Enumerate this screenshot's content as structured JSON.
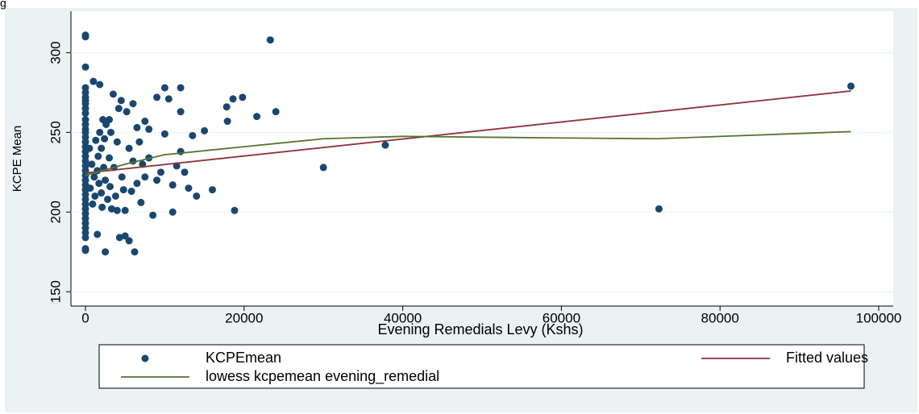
{
  "caption": "g",
  "chart_data": {
    "type": "scatter",
    "xlabel": "Evening Remedials Levy (Kshs)",
    "ylabel": "KCPE Mean",
    "xlim": [
      -1830,
      101830
    ],
    "ylim": [
      141,
      326
    ],
    "xticks": [
      0,
      20000,
      40000,
      60000,
      80000,
      100000
    ],
    "yticks": [
      150,
      200,
      250,
      300
    ],
    "grid": true,
    "series": [
      {
        "name": "KCPEmean",
        "kind": "scatter",
        "color": "#1a476f",
        "x": [
          0,
          0,
          0,
          0,
          0,
          0,
          0,
          0,
          0,
          0,
          0,
          0,
          0,
          0,
          0,
          0,
          0,
          0,
          0,
          0,
          0,
          0,
          0,
          0,
          0,
          0,
          0,
          0,
          0,
          0,
          0,
          0,
          0,
          0,
          0,
          0,
          0,
          0,
          500,
          600,
          800,
          900,
          1000,
          1100,
          1200,
          1300,
          1500,
          1500,
          1600,
          1700,
          1800,
          1800,
          2000,
          2000,
          2100,
          2200,
          2300,
          2400,
          2500,
          2500,
          2600,
          2800,
          3000,
          3000,
          3100,
          3200,
          3300,
          3500,
          3600,
          3800,
          4000,
          4000,
          4200,
          4300,
          4500,
          4600,
          4800,
          5000,
          5000,
          5200,
          5500,
          5500,
          5800,
          6000,
          6000,
          6200,
          6500,
          6500,
          6800,
          7000,
          7200,
          7500,
          7500,
          8000,
          8000,
          8500,
          9000,
          9000,
          9500,
          10000,
          10000,
          10500,
          11000,
          11000,
          11500,
          12000,
          12000,
          12000,
          12500,
          13000,
          13500,
          14000,
          15000,
          16000,
          17800,
          17900,
          18600,
          18800,
          19800,
          21600,
          23300,
          24000,
          30000,
          37800,
          72300,
          96500
        ],
        "values": [
          311,
          310,
          291,
          278,
          275,
          272,
          270,
          268,
          265,
          262,
          258,
          255,
          252,
          250,
          247,
          244,
          241,
          238,
          235,
          232,
          229,
          226,
          223,
          220,
          217,
          214,
          211,
          208,
          205,
          202,
          199,
          196,
          193,
          190,
          187,
          184,
          177,
          176,
          240,
          215,
          230,
          205,
          282,
          222,
          210,
          245,
          186,
          226,
          235,
          218,
          280,
          250,
          212,
          240,
          203,
          258,
          228,
          246,
          175,
          220,
          255,
          208,
          234,
          258,
          216,
          250,
          202,
          274,
          228,
          210,
          201,
          244,
          265,
          184,
          270,
          222,
          214,
          185,
          201,
          263,
          182,
          240,
          213,
          268,
          232,
          175,
          253,
          218,
          244,
          206,
          230,
          257,
          222,
          252,
          234,
          198,
          220,
          272,
          225,
          278,
          249,
          271,
          200,
          217,
          229,
          238,
          278,
          263,
          225,
          215,
          248,
          210,
          251,
          214,
          266,
          257,
          271,
          201,
          272,
          260,
          308,
          263,
          228,
          242,
          202,
          279
        ]
      },
      {
        "name": "Fitted values",
        "kind": "line",
        "color": "#90353b",
        "x": [
          0,
          96500
        ],
        "values": [
          224.5,
          276
        ]
      },
      {
        "name": "lowess kcpemean evening_remedial",
        "kind": "line",
        "color": "#55752f",
        "x": [
          0,
          5000,
          10000,
          20000,
          30000,
          40000,
          50000,
          60000,
          72000,
          96500
        ],
        "values": [
          223,
          230,
          236,
          241,
          246,
          247.5,
          247,
          246.5,
          246,
          250.5
        ]
      }
    ]
  }
}
